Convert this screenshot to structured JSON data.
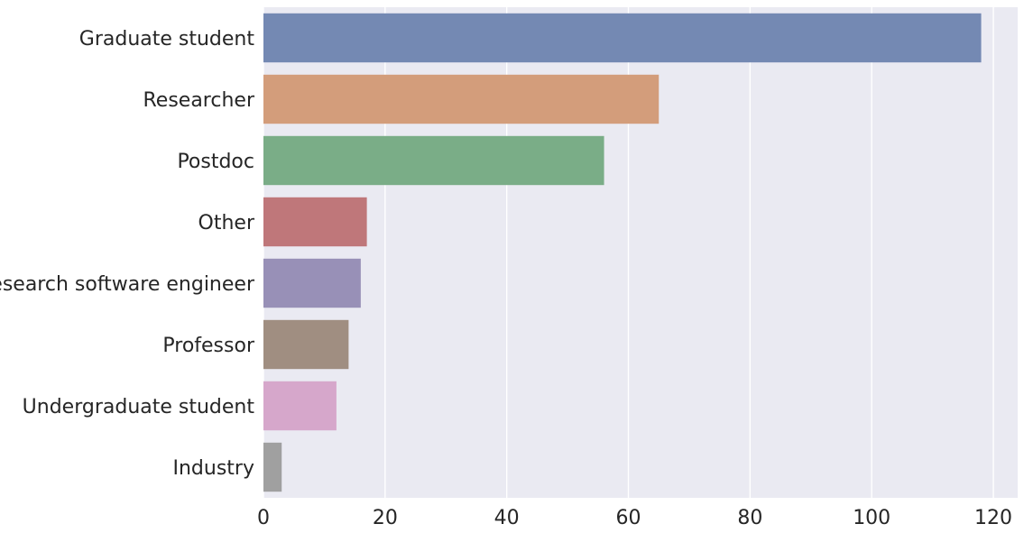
{
  "chart_data": {
    "type": "bar",
    "orientation": "horizontal",
    "categories": [
      "Graduate student",
      "Researcher",
      "Postdoc",
      "Other",
      "Research software engineer",
      "Professor",
      "Undergraduate student",
      "Industry"
    ],
    "values": [
      118,
      65,
      56,
      17,
      16,
      14,
      12,
      3
    ],
    "colors": [
      "#7489b3",
      "#d39d7b",
      "#7aad87",
      "#bf777a",
      "#9890b7",
      "#a08e81",
      "#d6a7cb",
      "#a0a0a0"
    ],
    "title": "",
    "xlabel": "",
    "ylabel": "",
    "xlim": [
      0,
      124
    ],
    "xticks": [
      0,
      20,
      40,
      60,
      80,
      100,
      120
    ],
    "grid": true,
    "legend": "none"
  },
  "style": {
    "background": "#eaeaf2",
    "gridline": "#ffffff",
    "text": "#262626"
  }
}
